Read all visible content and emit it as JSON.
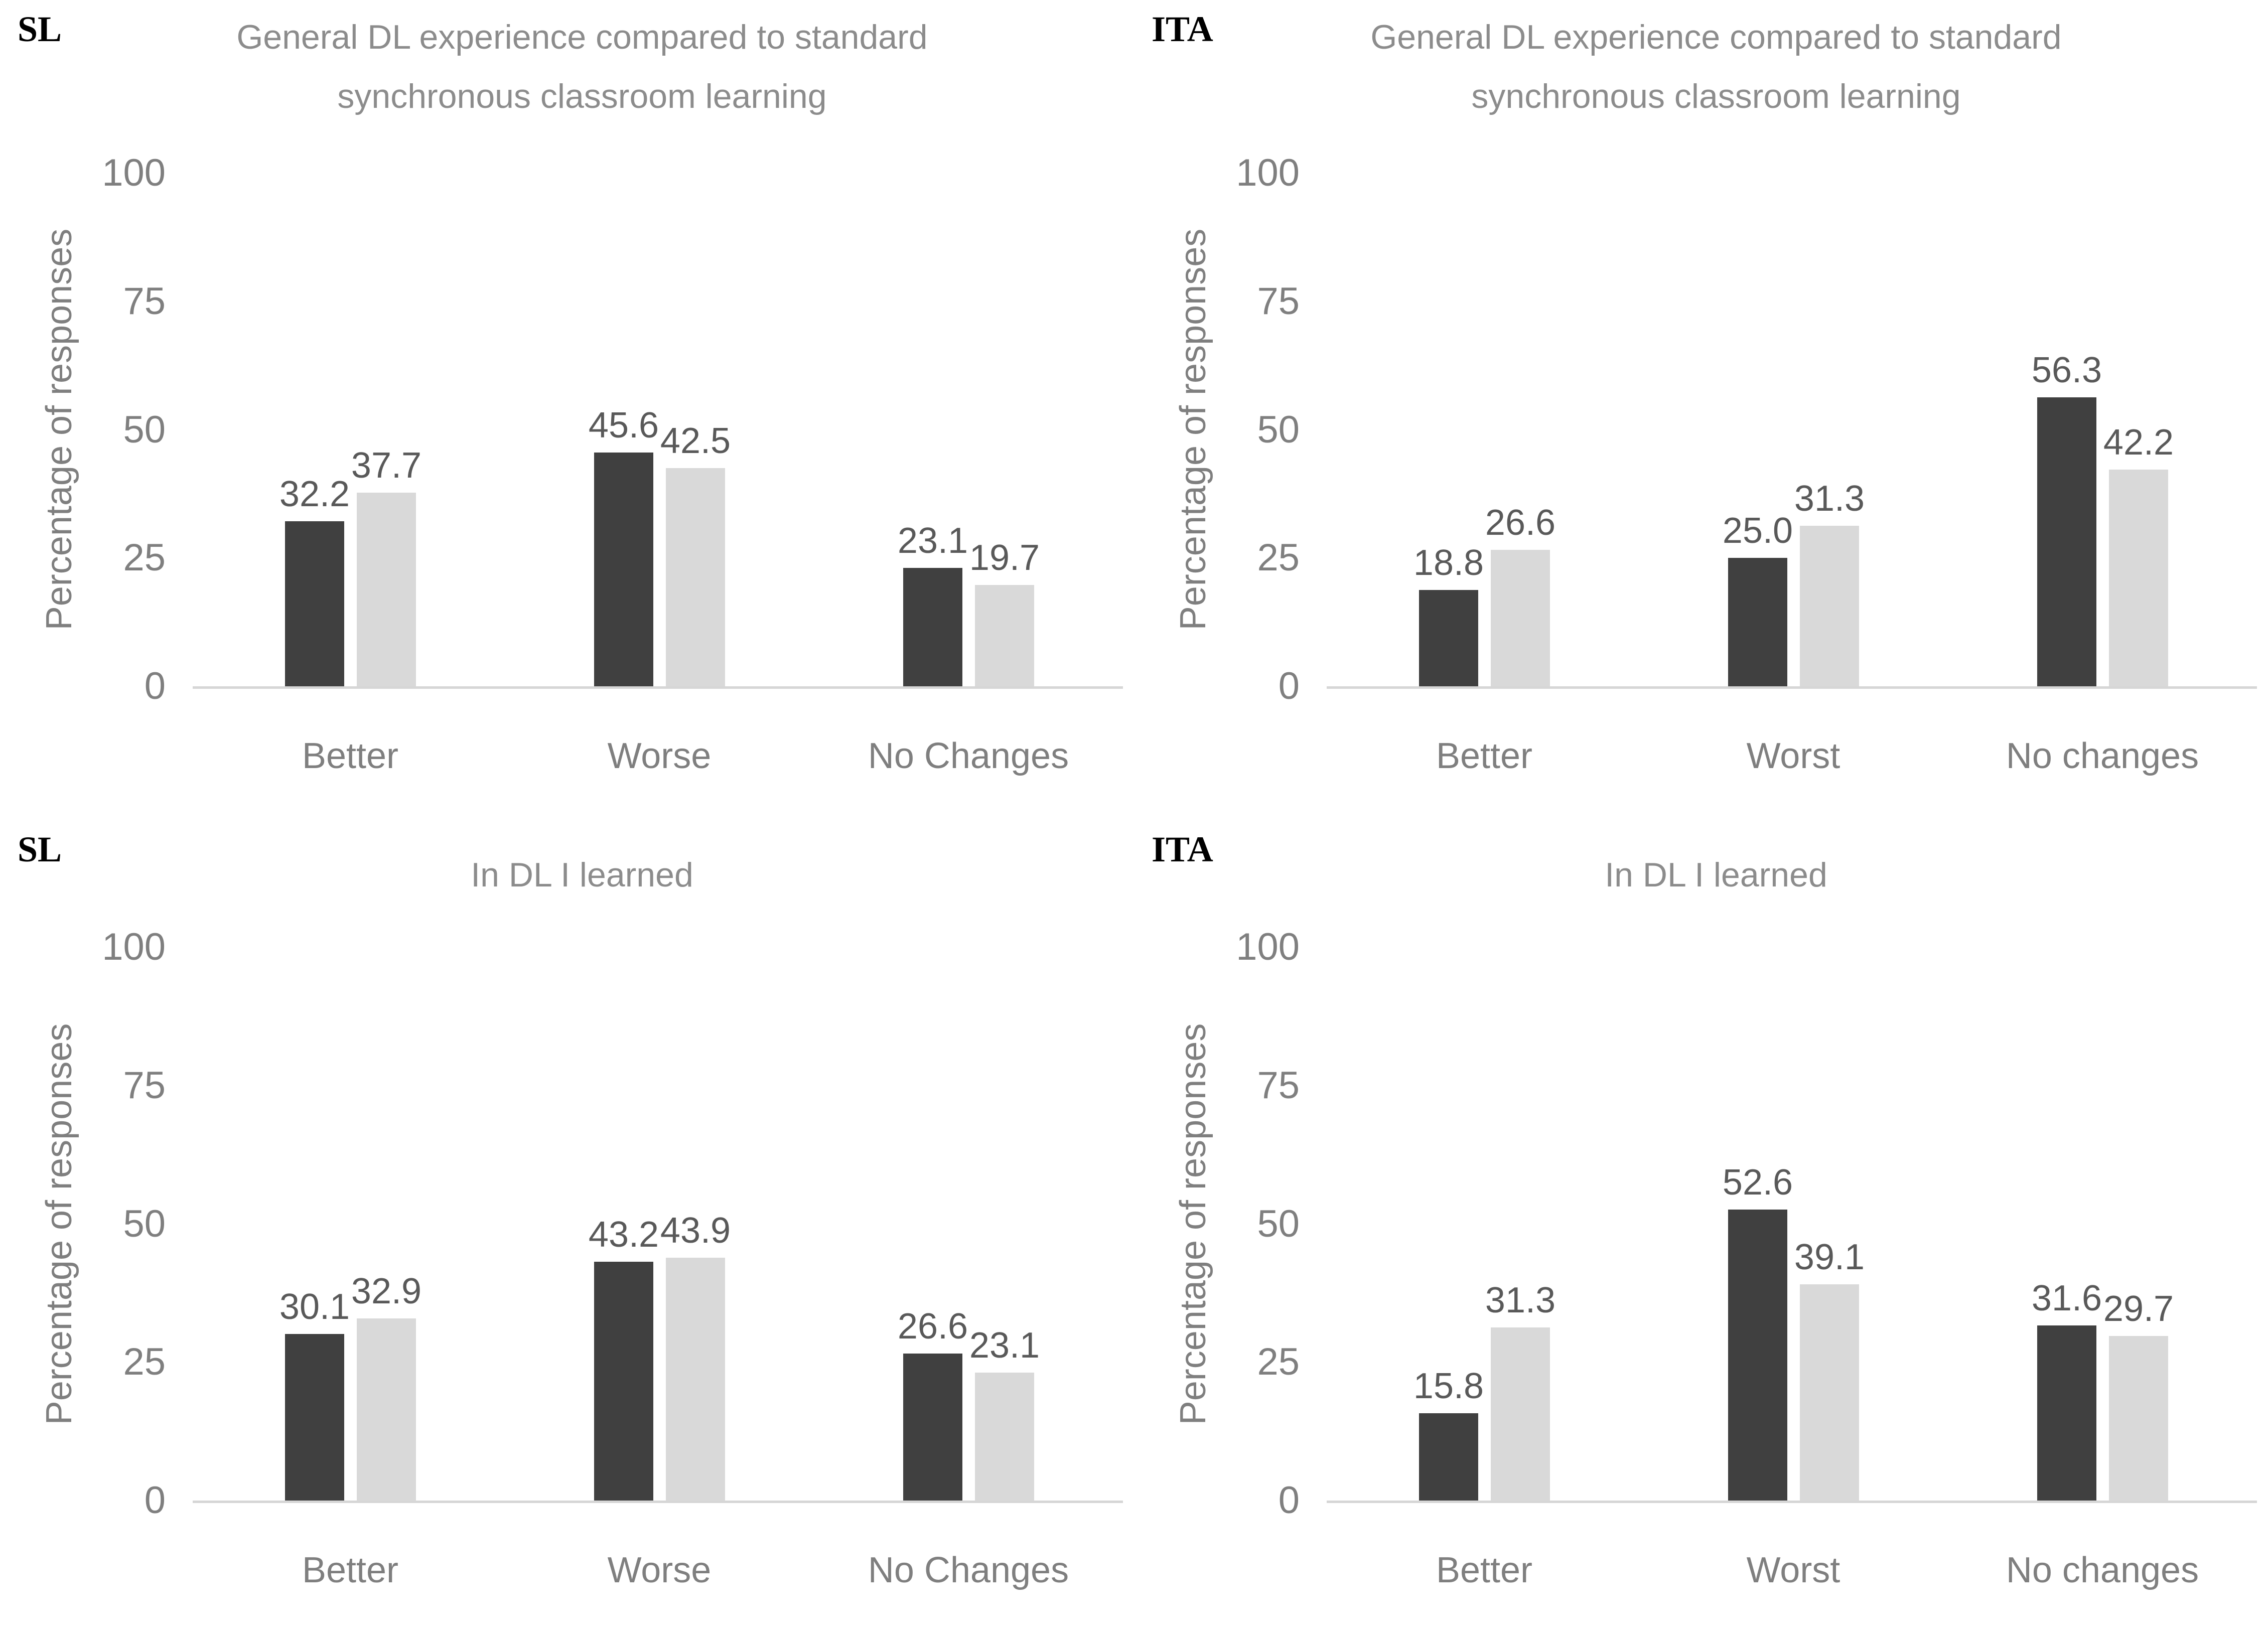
{
  "figure": {
    "background": "#ffffff",
    "colors": {
      "series_dark": "#404040",
      "series_light": "#d9d9d9",
      "title_text": "#8c8c8c",
      "axis_text": "#7f7f7f",
      "data_label_text": "#595959",
      "axis_line": "#d6d6d6",
      "corner_label_text": "#000000"
    }
  },
  "chart_data": [
    {
      "id": "sl-general",
      "type": "bar",
      "corner_label": "SL",
      "title": "General DL experience compared to standard synchronous classroom learning",
      "title_lines": [
        "General DL experience compared to standard",
        "synchronous classroom learning"
      ],
      "xlabel": "",
      "ylabel": "Percentage of responses",
      "ylim": [
        0,
        100
      ],
      "yticks": [
        100,
        75,
        50,
        25,
        0
      ],
      "grid": false,
      "legend_position": "none",
      "categories": [
        "Better",
        "Worse",
        "No Changes"
      ],
      "series": [
        {
          "color": "#404040",
          "values": [
            32.2,
            45.6,
            23.1
          ],
          "labels": [
            "32.2",
            "45.6",
            "23.1"
          ]
        },
        {
          "color": "#d9d9d9",
          "values": [
            37.7,
            42.5,
            19.7
          ],
          "labels": [
            "37.7",
            "42.5",
            "19.7"
          ]
        }
      ]
    },
    {
      "id": "ita-general",
      "type": "bar",
      "corner_label": "ITA",
      "title": "General DL experience compared to standard synchronous classroom learning",
      "title_lines": [
        "General DL experience compared to standard",
        "synchronous classroom learning"
      ],
      "xlabel": "",
      "ylabel": "Percentage of responses",
      "ylim": [
        0,
        100
      ],
      "yticks": [
        100,
        75,
        50,
        25,
        0
      ],
      "grid": false,
      "legend_position": "none",
      "categories": [
        "Better",
        "Worst",
        "No changes"
      ],
      "series": [
        {
          "color": "#404040",
          "values": [
            18.8,
            25.0,
            56.3
          ],
          "labels": [
            "18.8",
            "25.0",
            "56.3"
          ]
        },
        {
          "color": "#d9d9d9",
          "values": [
            26.6,
            31.3,
            42.2
          ],
          "labels": [
            "26.6",
            "31.3",
            "42.2"
          ]
        }
      ]
    },
    {
      "id": "sl-learned",
      "type": "bar",
      "corner_label": "SL",
      "title": "In DL I learned",
      "title_lines": [
        "In DL I learned"
      ],
      "xlabel": "",
      "ylabel": "Percentage of responses",
      "ylim": [
        0,
        100
      ],
      "yticks": [
        100,
        75,
        50,
        25,
        0
      ],
      "grid": false,
      "legend_position": "none",
      "categories": [
        "Better",
        "Worse",
        "No Changes"
      ],
      "series": [
        {
          "color": "#404040",
          "values": [
            30.1,
            43.2,
            26.6
          ],
          "labels": [
            "30.1",
            "43.2",
            "26.6"
          ]
        },
        {
          "color": "#d9d9d9",
          "values": [
            32.9,
            43.9,
            23.1
          ],
          "labels": [
            "32.9",
            "43.9",
            "23.1"
          ]
        }
      ]
    },
    {
      "id": "ita-learned",
      "type": "bar",
      "corner_label": "ITA",
      "title": "In DL I learned",
      "title_lines": [
        "In DL I learned"
      ],
      "xlabel": "",
      "ylabel": "Percentage of responses",
      "ylim": [
        0,
        100
      ],
      "yticks": [
        100,
        75,
        50,
        25,
        0
      ],
      "grid": false,
      "legend_position": "none",
      "categories": [
        "Better",
        "Worst",
        "No changes"
      ],
      "series": [
        {
          "color": "#404040",
          "values": [
            15.8,
            52.6,
            31.6
          ],
          "labels": [
            "15.8",
            "52.6",
            "31.6"
          ]
        },
        {
          "color": "#d9d9d9",
          "values": [
            31.3,
            39.1,
            29.7
          ],
          "labels": [
            "31.3",
            "39.1",
            "29.7"
          ]
        }
      ]
    }
  ]
}
